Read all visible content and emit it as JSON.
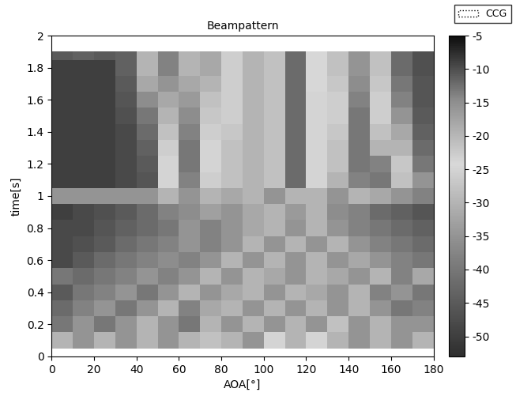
{
  "chart_data": {
    "type": "heatmap",
    "title": "Beampattern",
    "x_label": "AOA[°]",
    "y_label": "time[s]",
    "xlim": [
      0,
      180
    ],
    "xticks": [
      0,
      20,
      40,
      60,
      80,
      100,
      120,
      140,
      160,
      180
    ],
    "ylim": [
      0,
      2
    ],
    "yticks": [
      0,
      0.2,
      0.4,
      0.6,
      0.8,
      1,
      1.2,
      1.4,
      1.6,
      1.8,
      2
    ],
    "grid": false,
    "legend": "upper right",
    "series": [
      {
        "name": "CCG",
        "line_style": "dotted"
      }
    ],
    "x_edges": [
      0,
      10,
      20,
      30,
      40,
      50,
      60,
      70,
      80,
      90,
      100,
      110,
      120,
      130,
      140,
      150,
      160,
      170,
      180
    ],
    "y_edges": [
      0.05,
      0.15,
      0.25,
      0.35,
      0.45,
      0.55,
      0.65,
      0.75,
      0.85,
      0.95,
      1.05,
      1.15,
      1.25,
      1.35,
      1.45,
      1.55,
      1.65,
      1.75,
      1.85,
      1.9
    ],
    "cells": [
      [
        -30,
        -35,
        -30,
        -35,
        -30,
        -35,
        -30,
        -28,
        -30,
        -35,
        -25,
        -30,
        -25,
        -30,
        -35,
        -30,
        -35,
        -30
      ],
      [
        -40,
        -35,
        -40,
        -35,
        -30,
        -35,
        -40,
        -30,
        -35,
        -30,
        -35,
        -30,
        -35,
        -28,
        -35,
        -30,
        -35,
        -35
      ],
      [
        -42,
        -38,
        -35,
        -40,
        -35,
        -30,
        -38,
        -32,
        -30,
        -35,
        -30,
        -35,
        -30,
        -35,
        -30,
        -35,
        -40,
        -38
      ],
      [
        -45,
        -40,
        -38,
        -35,
        -40,
        -35,
        -30,
        -35,
        -32,
        -30,
        -35,
        -30,
        -32,
        -35,
        -30,
        -38,
        -35,
        -40
      ],
      [
        -40,
        -42,
        -40,
        -38,
        -35,
        -38,
        -35,
        -30,
        -35,
        -30,
        -32,
        -35,
        -30,
        -32,
        -35,
        -30,
        -38,
        -32
      ],
      [
        -48,
        -45,
        -42,
        -40,
        -38,
        -36,
        -38,
        -35,
        -30,
        -35,
        -30,
        -35,
        -30,
        -35,
        -32,
        -35,
        -38,
        -40
      ],
      [
        -48,
        -47,
        -45,
        -42,
        -40,
        -38,
        -35,
        -38,
        -35,
        -30,
        -35,
        -30,
        -35,
        -30,
        -35,
        -38,
        -40,
        -42
      ],
      [
        -48,
        -48,
        -46,
        -44,
        -42,
        -40,
        -35,
        -38,
        -35,
        -32,
        -30,
        -35,
        -30,
        -35,
        -38,
        -40,
        -42,
        -44
      ],
      [
        -50,
        -48,
        -47,
        -45,
        -42,
        -38,
        -36,
        -33,
        -35,
        -32,
        -30,
        -34,
        -30,
        -36,
        -38,
        -42,
        -44,
        -46
      ],
      [
        -35,
        -35,
        -35,
        -35,
        -35,
        -30,
        -35,
        -30,
        -32,
        -30,
        -35,
        -30,
        -30,
        -35,
        -30,
        -32,
        -35,
        -38
      ],
      [
        -50,
        -50,
        -50,
        -48,
        -46,
        -25,
        -38,
        -26,
        -28,
        -30,
        -28,
        -42,
        -25,
        -30,
        -38,
        -40,
        -28,
        -35
      ],
      [
        -50,
        -50,
        -50,
        -48,
        -45,
        -25,
        -40,
        -25,
        -28,
        -30,
        -28,
        -42,
        -25,
        -28,
        -40,
        -38,
        -27,
        -40
      ],
      [
        -50,
        -50,
        -50,
        -48,
        -44,
        -26,
        -40,
        -25,
        -28,
        -30,
        -28,
        -42,
        -25,
        -28,
        -40,
        -30,
        -30,
        -42
      ],
      [
        -50,
        -50,
        -50,
        -48,
        -42,
        -28,
        -38,
        -26,
        -27,
        -30,
        -28,
        -42,
        -25,
        -27,
        -40,
        -28,
        -32,
        -44
      ],
      [
        -50,
        -50,
        -50,
        -47,
        -40,
        -30,
        -36,
        -27,
        -26,
        -30,
        -28,
        -42,
        -25,
        -26,
        -40,
        -26,
        -35,
        -45
      ],
      [
        -50,
        -50,
        -50,
        -46,
        -36,
        -32,
        -34,
        -28,
        -26,
        -30,
        -28,
        -42,
        -25,
        -26,
        -38,
        -26,
        -38,
        -46
      ],
      [
        -50,
        -50,
        -50,
        -45,
        -32,
        -35,
        -32,
        -30,
        -26,
        -30,
        -28,
        -42,
        -24,
        -27,
        -36,
        -27,
        -40,
        -46
      ],
      [
        -50,
        -50,
        -50,
        -44,
        -30,
        -38,
        -30,
        -32,
        -26,
        -30,
        -28,
        -42,
        -24,
        -28,
        -35,
        -28,
        -42,
        -47
      ],
      [
        -45,
        -44,
        -45,
        -44,
        -30,
        -38,
        -30,
        -32,
        -26,
        -30,
        -28,
        -42,
        -24,
        -28,
        -35,
        -28,
        -42,
        -47
      ]
    ],
    "clim": [
      -53,
      -5
    ],
    "cticks": [
      -50,
      -45,
      -40,
      -35,
      -30,
      -25,
      -20,
      -15,
      -10,
      -5
    ]
  }
}
